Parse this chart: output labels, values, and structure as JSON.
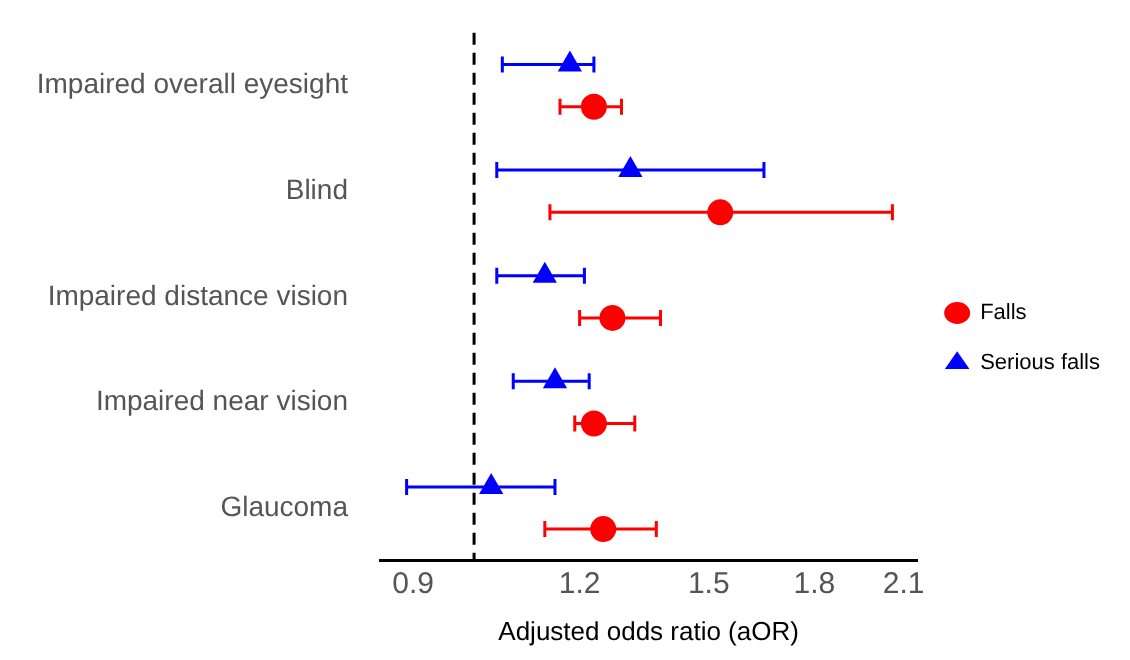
{
  "chart_data": {
    "type": "scatter",
    "orientation": "horizontal",
    "xlabel": "Adjusted odds ratio (aOR)",
    "categories": [
      "Impaired overall eyesight",
      "Blind",
      "Impaired distance vision",
      "Impaired near vision",
      "Glaucoma"
    ],
    "series": [
      {
        "name": "Falls",
        "color": "#ff0000",
        "marker": "circle",
        "values": [
          1.23,
          1.53,
          1.27,
          1.23,
          1.25
        ],
        "errors": [
          [
            1.16,
            1.29
          ],
          [
            1.14,
            2.06
          ],
          [
            1.2,
            1.38
          ],
          [
            1.19,
            1.32
          ],
          [
            1.13,
            1.37
          ]
        ]
      },
      {
        "name": "Serious falls",
        "color": "#0000ff",
        "marker": "triangle",
        "values": [
          1.18,
          1.31,
          1.13,
          1.15,
          1.03
        ],
        "errors": [
          [
            1.05,
            1.23
          ],
          [
            1.04,
            1.65
          ],
          [
            1.04,
            1.21
          ],
          [
            1.07,
            1.22
          ],
          [
            0.89,
            1.15
          ]
        ]
      }
    ],
    "log": "x",
    "xlim": [
      0.85,
      2.15
    ],
    "xticks": [
      0.9,
      1.2,
      1.5,
      1.8,
      2.1
    ],
    "ref_lines": [
      {
        "axis": "x",
        "value": 1,
        "line_style": "dashed",
        "color": "#000000"
      }
    ],
    "legend": "right"
  }
}
